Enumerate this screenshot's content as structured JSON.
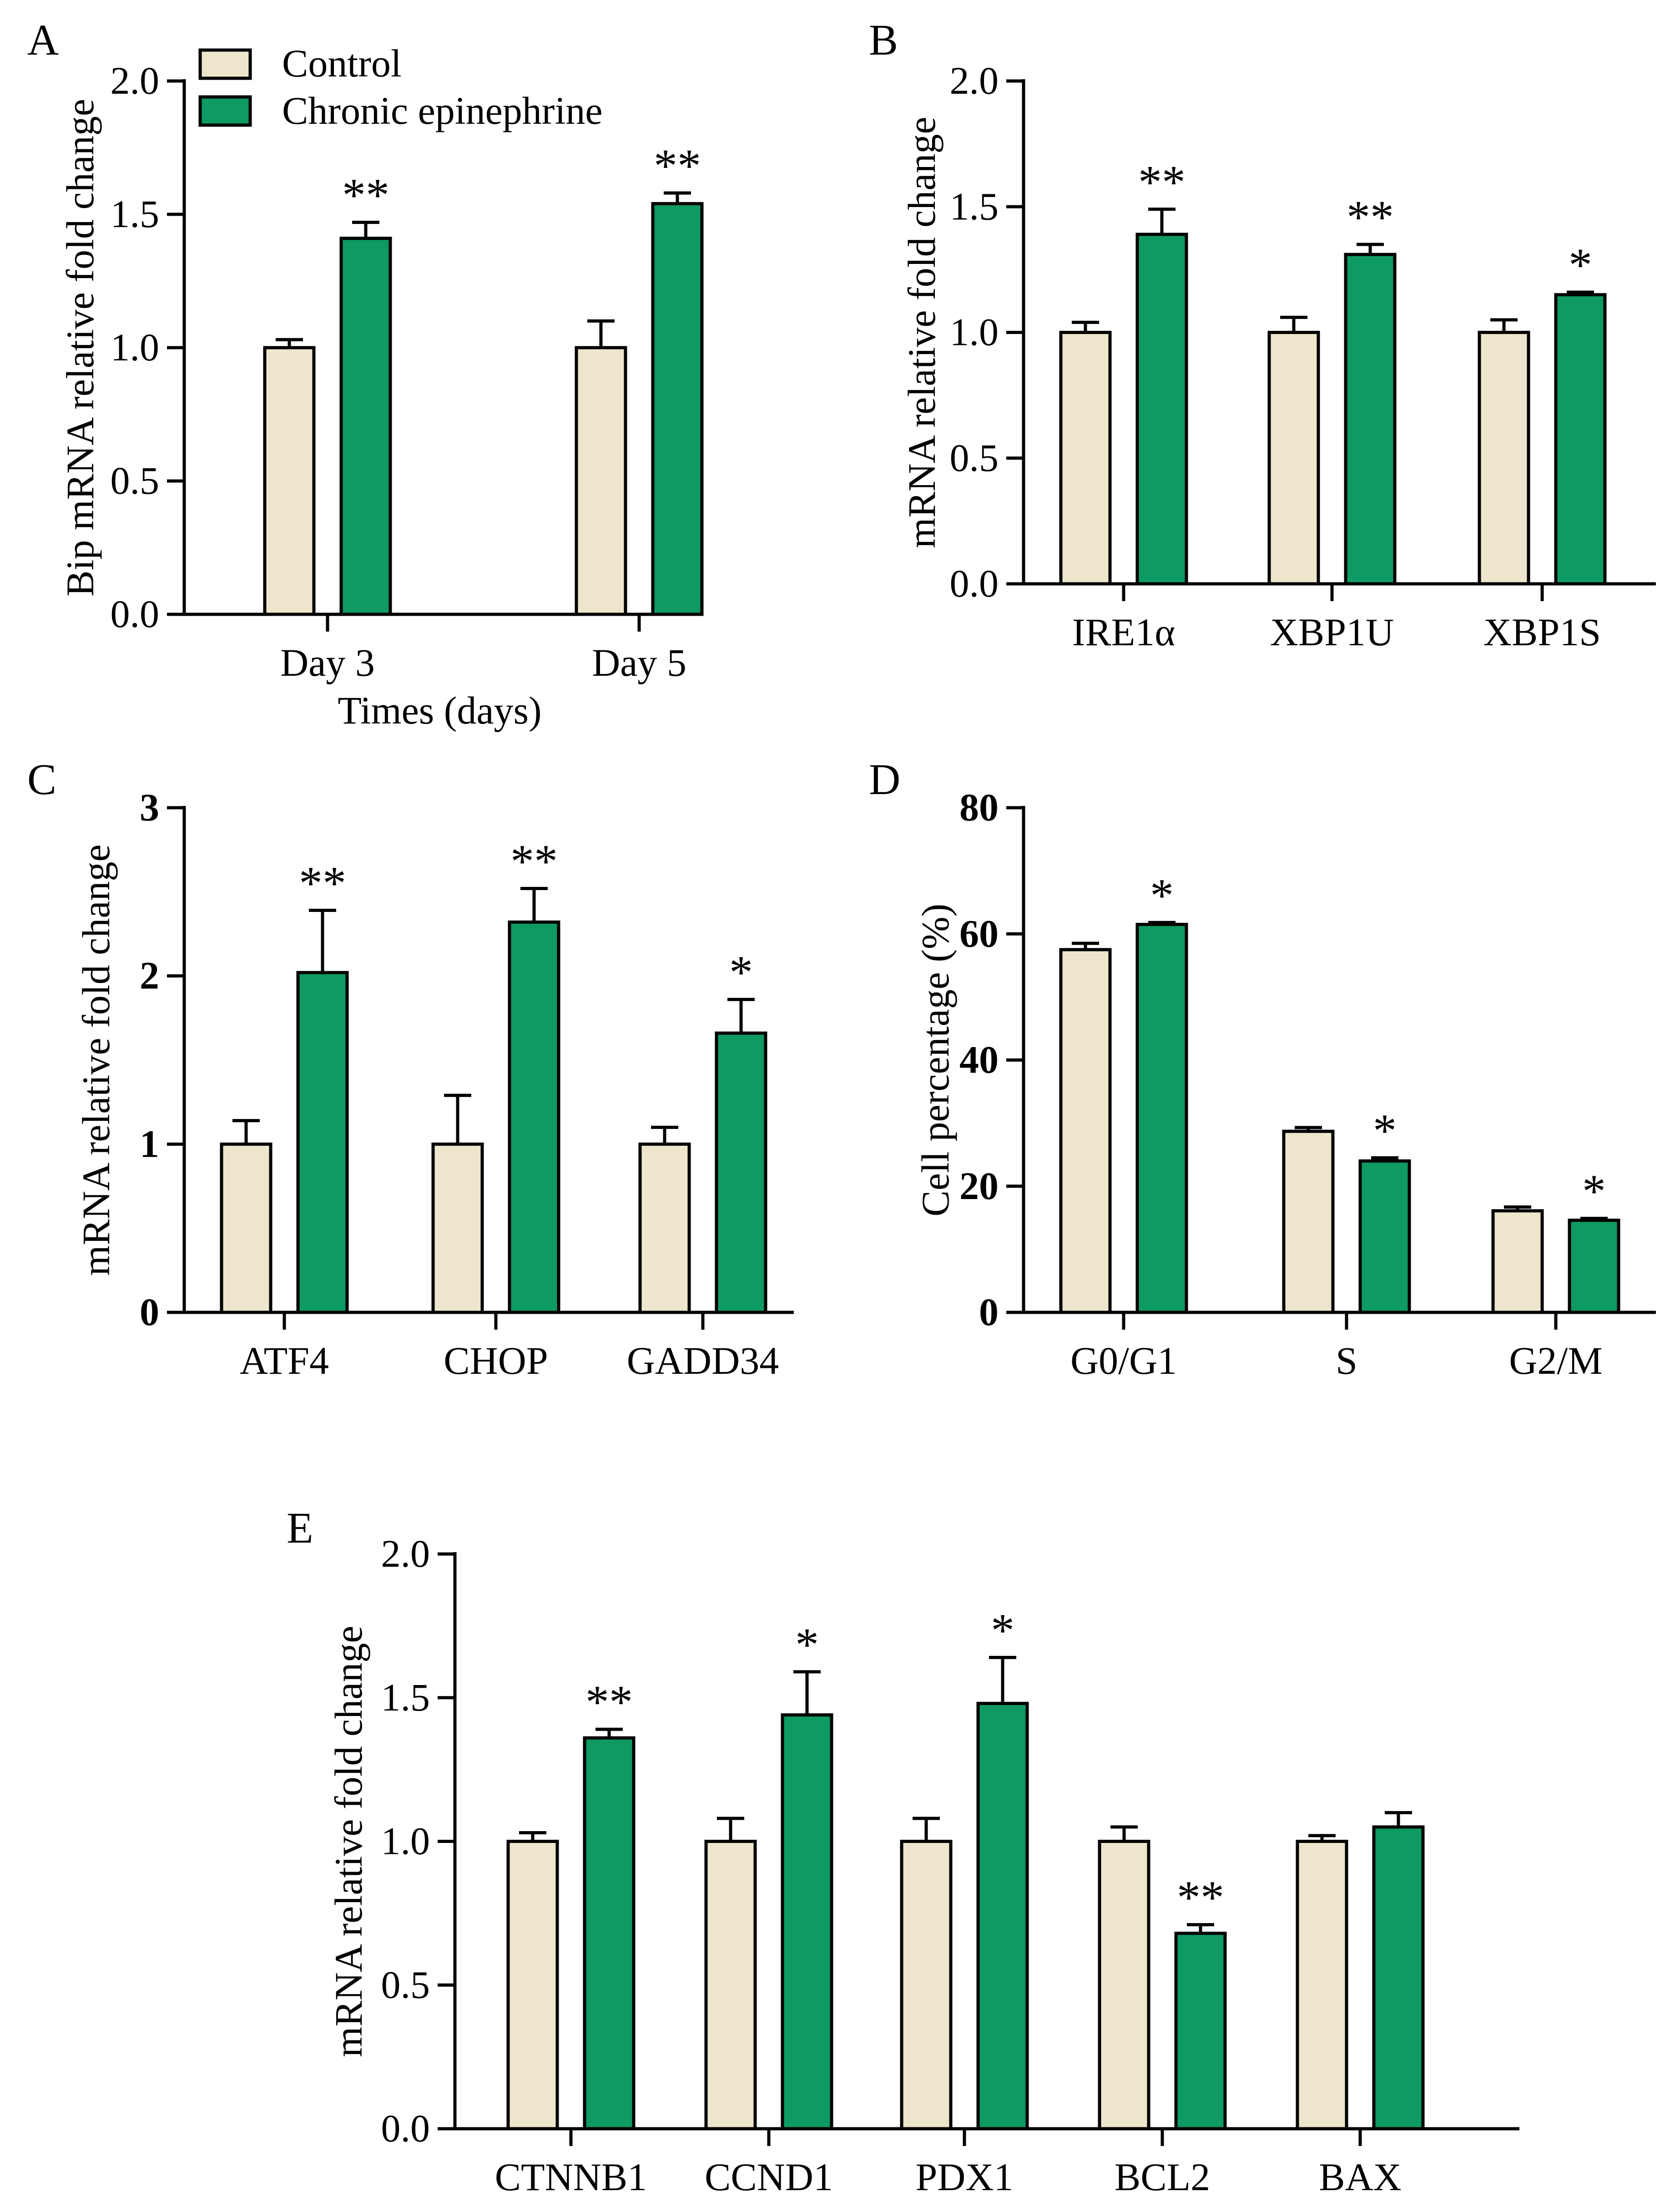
{
  "colors": {
    "control": "#ede6cc",
    "treatment": "#0e9a62",
    "axis": "#000000"
  },
  "legend": {
    "control_label": "Control",
    "treatment_label": "Chronic epinephrine"
  },
  "chart_data": [
    {
      "panel": "A",
      "type": "bar",
      "xlabel": "Times (days)",
      "ylabel": "Bip mRNA relative fold change",
      "ylim": [
        0,
        2.0
      ],
      "yticks": [
        "0.0",
        "0.5",
        "1.0",
        "1.5",
        "2.0"
      ],
      "categories": [
        "Day 3",
        "Day 5"
      ],
      "series": [
        {
          "name": "Control",
          "values": [
            1.0,
            1.0
          ],
          "errors": [
            0.03,
            0.1
          ],
          "marks": [
            "",
            ""
          ]
        },
        {
          "name": "Chronic epinephrine",
          "values": [
            1.41,
            1.54
          ],
          "errors": [
            0.06,
            0.04
          ],
          "marks": [
            "**",
            "**"
          ]
        }
      ]
    },
    {
      "panel": "B",
      "type": "bar",
      "xlabel": "",
      "ylabel": "mRNA relative fold change",
      "ylim": [
        0,
        2.0
      ],
      "yticks": [
        "0.0",
        "0.5",
        "1.0",
        "1.5",
        "2.0"
      ],
      "categories": [
        "IRE1α",
        "XBP1U",
        "XBP1S"
      ],
      "series": [
        {
          "name": "Control",
          "values": [
            1.0,
            1.0,
            1.0
          ],
          "errors": [
            0.04,
            0.06,
            0.05
          ],
          "marks": [
            "",
            "",
            ""
          ]
        },
        {
          "name": "Chronic epinephrine",
          "values": [
            1.39,
            1.31,
            1.15
          ],
          "errors": [
            0.1,
            0.04,
            0.01
          ],
          "marks": [
            "**",
            "**",
            "*"
          ]
        }
      ]
    },
    {
      "panel": "C",
      "type": "bar",
      "xlabel": "",
      "ylabel": "mRNA relative fold change",
      "ylim": [
        0,
        3
      ],
      "yticks": [
        "0",
        "1",
        "2",
        "3"
      ],
      "categories": [
        "ATF4",
        "CHOP",
        "GADD34"
      ],
      "series": [
        {
          "name": "Control",
          "values": [
            1.0,
            1.0,
            1.0
          ],
          "errors": [
            0.14,
            0.29,
            0.1
          ],
          "marks": [
            "",
            "",
            ""
          ]
        },
        {
          "name": "Chronic epinephrine",
          "values": [
            2.02,
            2.32,
            1.66
          ],
          "errors": [
            0.37,
            0.2,
            0.2
          ],
          "marks": [
            "**",
            "**",
            "*"
          ]
        }
      ]
    },
    {
      "panel": "D",
      "type": "bar",
      "xlabel": "",
      "ylabel": "Cell percentage (%)",
      "ylim": [
        0,
        80
      ],
      "yticks": [
        "0",
        "20",
        "40",
        "60",
        "80"
      ],
      "categories": [
        "G0/G1",
        "S",
        "G2/M"
      ],
      "series": [
        {
          "name": "Control",
          "values": [
            57.5,
            28.7,
            16.1
          ],
          "errors": [
            1.0,
            0.6,
            0.6
          ],
          "marks": [
            "",
            "",
            ""
          ]
        },
        {
          "name": "Chronic epinephrine",
          "values": [
            61.5,
            24.0,
            14.6
          ],
          "errors": [
            0.3,
            0.5,
            0.3
          ],
          "marks": [
            "*",
            "*",
            "*"
          ]
        }
      ]
    },
    {
      "panel": "E",
      "type": "bar",
      "xlabel": "",
      "ylabel": "mRNA relative fold change",
      "ylim": [
        0,
        2.0
      ],
      "yticks": [
        "0.0",
        "0.5",
        "1.0",
        "1.5",
        "2.0"
      ],
      "categories": [
        "CTNNB1",
        "CCND1",
        "PDX1",
        "BCL2",
        "BAX"
      ],
      "series": [
        {
          "name": "Control",
          "values": [
            1.0,
            1.0,
            1.0,
            1.0,
            1.0
          ],
          "errors": [
            0.03,
            0.08,
            0.08,
            0.05,
            0.02
          ],
          "marks": [
            "",
            "",
            "",
            "",
            ""
          ]
        },
        {
          "name": "Chronic epinephrine",
          "values": [
            1.36,
            1.44,
            1.48,
            0.68,
            1.05
          ],
          "errors": [
            0.03,
            0.15,
            0.16,
            0.03,
            0.05
          ],
          "marks": [
            "**",
            "*",
            "*",
            "**",
            ""
          ]
        }
      ]
    }
  ]
}
